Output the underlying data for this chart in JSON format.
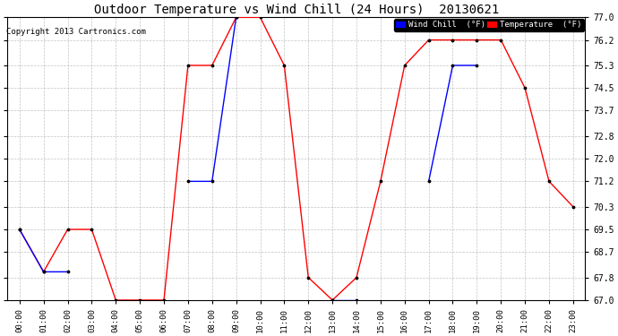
{
  "title": "Outdoor Temperature vs Wind Chill (24 Hours)  20130621",
  "copyright": "Copyright 2013 Cartronics.com",
  "ylim": [
    67.0,
    77.0
  ],
  "yticks": [
    67.0,
    67.8,
    68.7,
    69.5,
    70.3,
    71.2,
    72.0,
    72.8,
    73.7,
    74.5,
    75.3,
    76.2,
    77.0
  ],
  "hours": [
    "00:00",
    "01:00",
    "02:00",
    "03:00",
    "04:00",
    "05:00",
    "06:00",
    "07:00",
    "08:00",
    "09:00",
    "10:00",
    "11:00",
    "12:00",
    "13:00",
    "14:00",
    "15:00",
    "16:00",
    "17:00",
    "18:00",
    "19:00",
    "20:00",
    "21:00",
    "22:00",
    "23:00"
  ],
  "temperature": [
    69.5,
    68.0,
    69.5,
    69.5,
    67.0,
    67.0,
    67.0,
    75.3,
    75.3,
    77.0,
    77.0,
    75.3,
    67.8,
    67.0,
    67.8,
    71.2,
    75.3,
    76.2,
    76.2,
    76.2,
    76.2,
    74.5,
    71.2,
    70.3
  ],
  "wind_chill": [
    69.5,
    68.0,
    68.0,
    null,
    null,
    null,
    null,
    71.2,
    71.2,
    77.0,
    null,
    null,
    null,
    67.0,
    67.0,
    null,
    null,
    71.2,
    75.3,
    75.3,
    null,
    null,
    null,
    null
  ],
  "temp_color": "#ff0000",
  "wind_chill_color": "#0000ff",
  "bg_color": "#ffffff",
  "plot_bg_color": "#ffffff",
  "grid_color": "#888888",
  "marker_color": "#000000",
  "fig_width": 6.9,
  "fig_height": 3.75,
  "dpi": 100
}
